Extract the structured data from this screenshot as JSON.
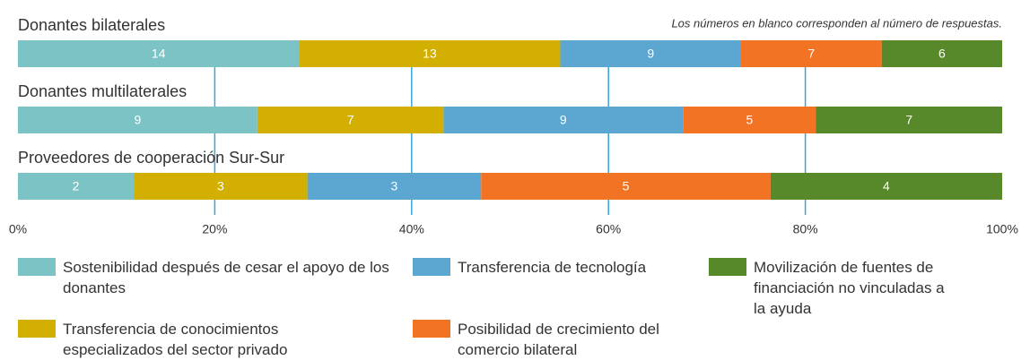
{
  "chart_data": {
    "type": "stacked-bar-100",
    "note": "Los números en blanco corresponden al número de respuestas.",
    "categories": [
      "Donantes bilaterales",
      "Donantes multilaterales",
      "Proveedores de cooperación Sur-Sur"
    ],
    "series": [
      {
        "name": "Sostenibilidad después de cesar el apoyo de los donantes",
        "color": "#7cc3c5",
        "values": [
          14,
          9,
          2
        ]
      },
      {
        "name": "Transferencia de conocimientos especializados del sector privado",
        "color": "#d2af00",
        "values": [
          13,
          7,
          3
        ]
      },
      {
        "name": "Transferencia de tecnología",
        "color": "#5ba7d1",
        "values": [
          9,
          9,
          3
        ]
      },
      {
        "name": "Posibilidad de crecimiento del comercio bilateral",
        "color": "#f37324",
        "values": [
          7,
          5,
          5
        ]
      },
      {
        "name": "Movilización de fuentes de financiación no vinculadas a la ayuda",
        "color": "#578829",
        "values": [
          6,
          7,
          4
        ]
      }
    ],
    "xlim": [
      0,
      100
    ],
    "xticks": [
      {
        "value": 0,
        "label": "0%"
      },
      {
        "value": 20,
        "label": "20%"
      },
      {
        "value": 40,
        "label": "40%"
      },
      {
        "value": 60,
        "label": "60%"
      },
      {
        "value": 80,
        "label": "80%"
      },
      {
        "value": 100,
        "label": "100%"
      }
    ],
    "grid": true,
    "grid_color": "#3aa6d6"
  }
}
